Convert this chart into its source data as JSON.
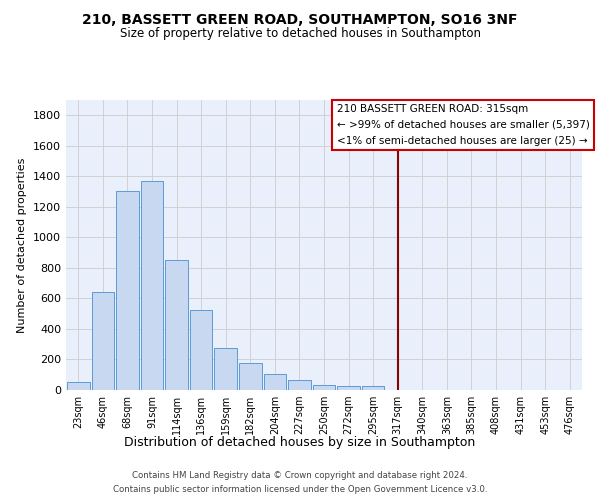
{
  "title": "210, BASSETT GREEN ROAD, SOUTHAMPTON, SO16 3NF",
  "subtitle": "Size of property relative to detached houses in Southampton",
  "xlabel": "Distribution of detached houses by size in Southampton",
  "ylabel": "Number of detached properties",
  "bin_labels": [
    "23sqm",
    "46sqm",
    "68sqm",
    "91sqm",
    "114sqm",
    "136sqm",
    "159sqm",
    "182sqm",
    "204sqm",
    "227sqm",
    "250sqm",
    "272sqm",
    "295sqm",
    "317sqm",
    "340sqm",
    "363sqm",
    "385sqm",
    "408sqm",
    "431sqm",
    "453sqm",
    "476sqm"
  ],
  "bar_values": [
    55,
    645,
    1305,
    1370,
    850,
    525,
    275,
    175,
    105,
    68,
    35,
    25,
    25,
    0,
    0,
    0,
    0,
    0,
    0,
    0,
    0
  ],
  "bar_color": "#c8d8f0",
  "bar_edgecolor": "#5b9bd5",
  "grid_color": "#cccccc",
  "bg_color": "#ffffff",
  "plot_bg_color": "#eaf0fb",
  "vline_color": "#8b0000",
  "ylim": [
    0,
    1900
  ],
  "yticks": [
    0,
    200,
    400,
    600,
    800,
    1000,
    1200,
    1400,
    1600,
    1800
  ],
  "annotation_title": "210 BASSETT GREEN ROAD: 315sqm",
  "annotation_line1": "← >99% of detached houses are smaller (5,397)",
  "annotation_line2": "<1% of semi-detached houses are larger (25) →",
  "footnote1": "Contains HM Land Registry data © Crown copyright and database right 2024.",
  "footnote2": "Contains public sector information licensed under the Open Government Licence v3.0."
}
